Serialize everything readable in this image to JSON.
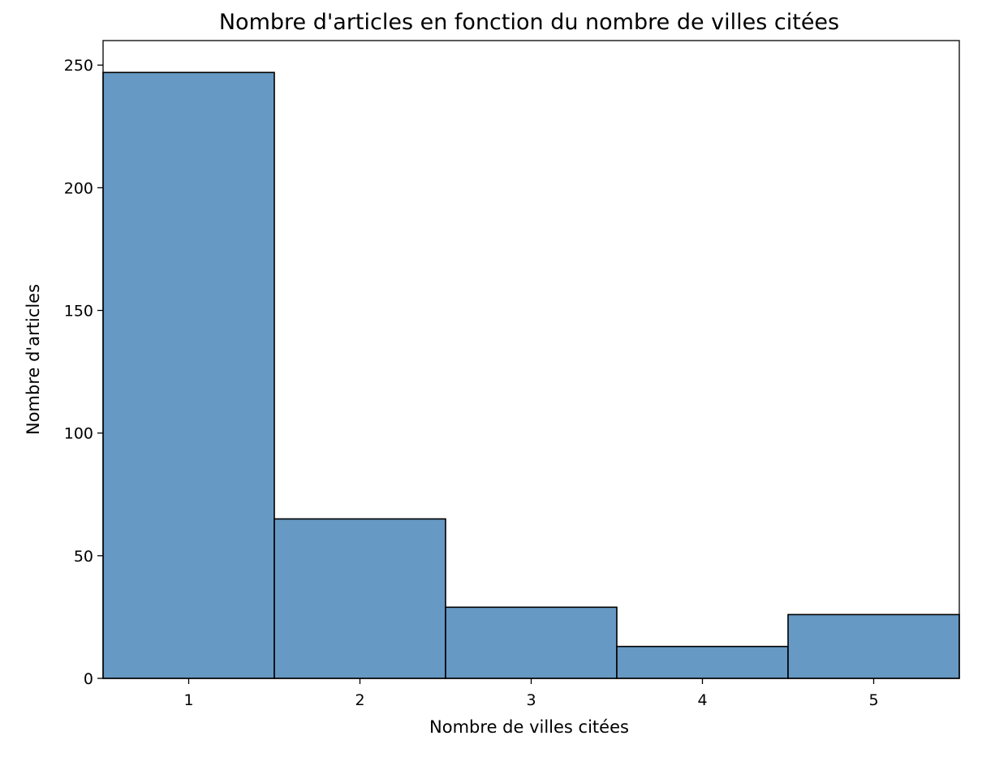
{
  "chart_data": {
    "type": "bar",
    "title": "Nombre d'articles en fonction du nombre de villes citées",
    "xlabel": "Nombre de villes citées",
    "ylabel": "Nombre d'articles",
    "categories": [
      "1",
      "2",
      "3",
      "4",
      "5"
    ],
    "values": [
      247,
      65,
      29,
      13,
      26
    ],
    "xlim": [
      0.5,
      5.5
    ],
    "ylim": [
      0,
      260
    ],
    "yticks": [
      0,
      50,
      100,
      150,
      200,
      250
    ],
    "xticks": [
      1,
      2,
      3,
      4,
      5
    ],
    "grid": false,
    "bar_color": "#6699c3",
    "edge_color": "#000000"
  }
}
